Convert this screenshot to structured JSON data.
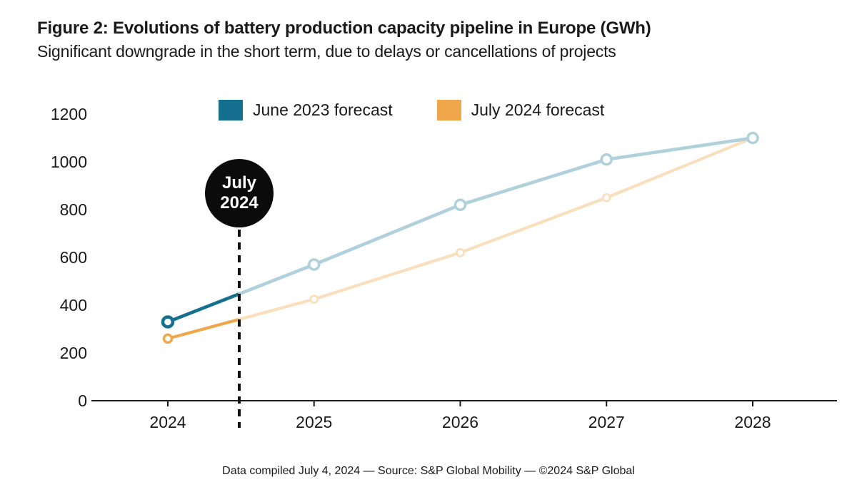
{
  "title": "Figure 2: Evolutions of battery production capacity pipeline in Europe (GWh)",
  "subtitle": "Significant downgrade in the short term, due to delays or cancellations of projects",
  "legend": [
    {
      "label": "June 2023 forecast",
      "color": "#14708e"
    },
    {
      "label": "July 2024 forecast",
      "color": "#f0a74c"
    }
  ],
  "annotation": {
    "line1": "July",
    "line2": "2024",
    "badge_color": "#0b0b0b"
  },
  "footer": "Data compiled July 4, 2024  —  Source: S&P Global Mobility  —  ©2024 S&P Global",
  "chart_data": {
    "type": "line",
    "title": "Evolutions of battery production capacity pipeline in Europe (GWh)",
    "categories": [
      "2024",
      "2025",
      "2026",
      "2027",
      "2028"
    ],
    "series": [
      {
        "name": "June 2023 forecast",
        "values": [
          330,
          570,
          820,
          1010,
          1100
        ],
        "color": "#14708e",
        "faded_color": "#b0d0dc"
      },
      {
        "name": "July 2024 forecast",
        "values": [
          260,
          425,
          620,
          850,
          1100
        ],
        "color": "#f0a74c",
        "faded_color": "#f9dfbe"
      }
    ],
    "xlabel": "",
    "ylabel": "",
    "ylim": [
      0,
      1200
    ],
    "yticks": [
      0,
      200,
      400,
      600,
      800,
      1000,
      1200
    ],
    "annotation_x": 2024.49,
    "annotation_label": "July 2024",
    "grid": false,
    "legend_position": "top"
  }
}
